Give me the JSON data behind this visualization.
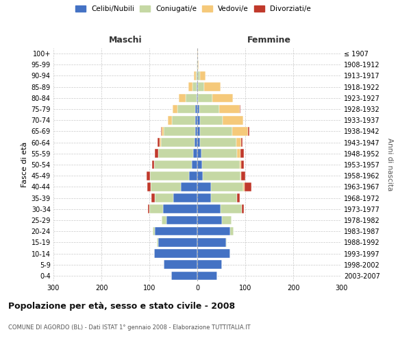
{
  "age_groups": [
    "0-4",
    "5-9",
    "10-14",
    "15-19",
    "20-24",
    "25-29",
    "30-34",
    "35-39",
    "40-44",
    "45-49",
    "50-54",
    "55-59",
    "60-64",
    "65-69",
    "70-74",
    "75-79",
    "80-84",
    "85-89",
    "90-94",
    "95-99",
    "100+"
  ],
  "birth_years": [
    "2003-2007",
    "1998-2002",
    "1993-1997",
    "1988-1992",
    "1983-1987",
    "1978-1982",
    "1973-1977",
    "1968-1972",
    "1963-1967",
    "1958-1962",
    "1953-1957",
    "1948-1952",
    "1943-1947",
    "1938-1942",
    "1933-1937",
    "1928-1932",
    "1923-1927",
    "1918-1922",
    "1913-1917",
    "1908-1912",
    "≤ 1907"
  ],
  "male_celibi": [
    55,
    70,
    90,
    82,
    88,
    65,
    72,
    50,
    35,
    17,
    12,
    9,
    6,
    5,
    5,
    4,
    2,
    2,
    0,
    0,
    0
  ],
  "male_coniugati": [
    0,
    0,
    0,
    2,
    5,
    10,
    28,
    38,
    62,
    82,
    78,
    72,
    70,
    65,
    48,
    38,
    22,
    8,
    3,
    1,
    0
  ],
  "male_vedovi": [
    0,
    0,
    0,
    0,
    0,
    0,
    0,
    0,
    0,
    0,
    0,
    0,
    2,
    4,
    8,
    10,
    15,
    8,
    4,
    1,
    0
  ],
  "male_divorziati": [
    0,
    0,
    0,
    0,
    0,
    0,
    3,
    7,
    8,
    7,
    5,
    7,
    5,
    2,
    0,
    0,
    0,
    0,
    0,
    0,
    0
  ],
  "female_celibi": [
    42,
    52,
    68,
    60,
    68,
    52,
    48,
    28,
    28,
    12,
    10,
    8,
    6,
    5,
    5,
    4,
    2,
    2,
    1,
    0,
    0
  ],
  "female_coniugati": [
    0,
    0,
    0,
    2,
    8,
    20,
    45,
    55,
    68,
    78,
    78,
    75,
    75,
    68,
    48,
    42,
    30,
    12,
    4,
    1,
    0
  ],
  "female_vedovi": [
    0,
    0,
    0,
    0,
    0,
    0,
    0,
    0,
    2,
    2,
    4,
    7,
    10,
    32,
    42,
    42,
    42,
    35,
    12,
    2,
    1
  ],
  "female_divorziati": [
    0,
    0,
    0,
    0,
    0,
    0,
    4,
    5,
    15,
    8,
    5,
    7,
    3,
    4,
    0,
    2,
    0,
    0,
    0,
    0,
    0
  ],
  "colors": {
    "celibi": "#4472C4",
    "coniugati": "#C5D8A4",
    "vedovi": "#F5C97A",
    "divorziati": "#C0392B"
  },
  "title": "Popolazione per età, sesso e stato civile - 2008",
  "subtitle": "COMUNE DI AGORDO (BL) - Dati ISTAT 1° gennaio 2008 - Elaborazione TUTTITALIA.IT",
  "label_maschi": "Maschi",
  "label_femmine": "Femmine",
  "ylabel_left": "Fasce di età",
  "ylabel_right": "Anni di nascita",
  "xlim": 300,
  "background_color": "#ffffff",
  "grid_color": "#bbbbbb",
  "legend_labels": [
    "Celibi/Nubili",
    "Coniugati/e",
    "Vedovi/e",
    "Divorziati/e"
  ]
}
